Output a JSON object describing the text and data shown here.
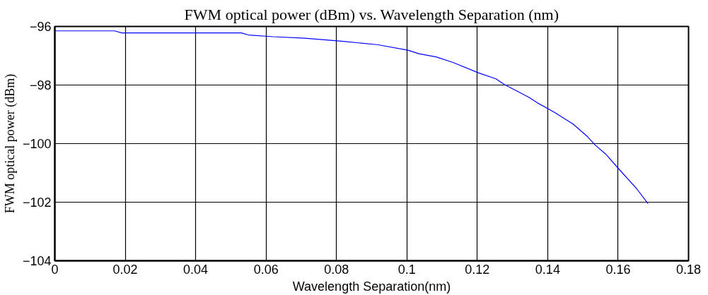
{
  "chart_data": {
    "type": "line",
    "title": "FWM optical power (dBm) vs. Wavelength Separation (nm)",
    "xlabel": "Wavelength Separation(nm)",
    "ylabel": "FWM optical power (dBm)",
    "x": [
      0,
      0.017,
      0.019,
      0.03,
      0.045,
      0.053,
      0.055,
      0.062,
      0.071,
      0.079,
      0.082,
      0.0916,
      0.1003,
      0.1034,
      0.1083,
      0.1131,
      0.1203,
      0.1253,
      0.1277,
      0.1347,
      0.1374,
      0.1416,
      0.1472,
      0.1513,
      0.1534,
      0.1565,
      0.1603,
      0.1652,
      0.1685
    ],
    "series": [
      {
        "color": "#0000ff",
        "values": [
          -96.15,
          -96.15,
          -96.22,
          -96.22,
          -96.22,
          -96.22,
          -96.29,
          -96.35,
          -96.4,
          -96.48,
          -96.51,
          -96.62,
          -96.81,
          -96.93,
          -97.04,
          -97.23,
          -97.58,
          -97.79,
          -97.98,
          -98.42,
          -98.63,
          -98.91,
          -99.33,
          -99.76,
          -100.04,
          -100.36,
          -100.88,
          -101.53,
          -102.05
        ]
      }
    ],
    "xlim": [
      0,
      0.18
    ],
    "ylim": [
      -104,
      -96
    ],
    "xticks": [
      0,
      0.02,
      0.04,
      0.06,
      0.08,
      0.1,
      0.12,
      0.14,
      0.16,
      0.18
    ],
    "yticks": [
      -104,
      -102,
      -100,
      -98,
      -96
    ],
    "grid": true,
    "marker": "none",
    "line_style": "solid"
  }
}
